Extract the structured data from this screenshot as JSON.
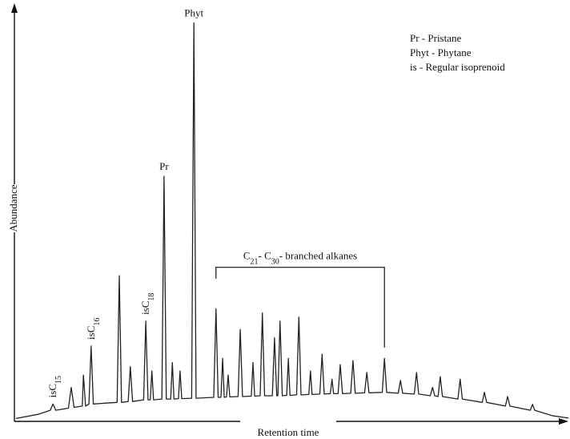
{
  "chart_data": {
    "type": "line",
    "ylabel": "Abundance",
    "xlabel": "Retention time",
    "xlim": [
      0,
      100
    ],
    "ylim": [
      0,
      100
    ],
    "color": "#222222",
    "legend_lines": [
      "Pr - Pristane",
      "Phyt - Phytane",
      "is - Regular isoprenoid"
    ],
    "peak_labels": [
      {
        "parts": [
          "Phyt"
        ],
        "x": 32.2,
        "value": 96
      },
      {
        "parts": [
          "Pr"
        ],
        "x": 26.8,
        "value": 59
      },
      {
        "parts": [
          "isC",
          "18"
        ],
        "x": 23.5,
        "value": 24,
        "rotated": true
      },
      {
        "parts": [
          "isC",
          "16"
        ],
        "x": 13.6,
        "value": 18,
        "rotated": true
      },
      {
        "parts": [
          "isC",
          "15"
        ],
        "x": 6.7,
        "value": 4,
        "rotated": true
      }
    ],
    "bracket": {
      "parts": [
        "C",
        "21",
        "- C",
        "30",
        "- branched alkanes"
      ],
      "x": [
        36.2,
        66.7
      ],
      "value": 37
    },
    "x": [
      0,
      4,
      6.2,
      6.7,
      7.2,
      9.5,
      10,
      10.5,
      12,
      12.2,
      12.6,
      13.2,
      13.6,
      14,
      16,
      18.3,
      18.7,
      19.1,
      20.3,
      20.7,
      21.1,
      23.1,
      23.5,
      23.9,
      24.3,
      24.6,
      24.9,
      26.4,
      26.8,
      27.2,
      28,
      28.3,
      28.6,
      29.4,
      29.7,
      30,
      31.8,
      32.2,
      32.6,
      35.8,
      36.2,
      36.6,
      37.1,
      37.4,
      37.7,
      38.1,
      38.4,
      38.7,
      40.2,
      40.6,
      41,
      42.6,
      42.9,
      43.2,
      44.2,
      44.6,
      45,
      46.4,
      46.8,
      47.2,
      47.4,
      47.8,
      48.2,
      49,
      49.3,
      49.6,
      50.8,
      51.2,
      51.6,
      53,
      53.3,
      53.6,
      55,
      55.4,
      55.8,
      56.9,
      57.2,
      57.5,
      58.3,
      58.7,
      59.1,
      60.6,
      61,
      61.4,
      63.1,
      63.5,
      63.9,
      66.3,
      66.7,
      67.1,
      69.2,
      69.6,
      70,
      72.1,
      72.5,
      72.9,
      75,
      75.4,
      75.8,
      76.4,
      76.8,
      77.2,
      80,
      80.4,
      80.8,
      84.4,
      84.8,
      85.2,
      88.6,
      89,
      89.4,
      93.1,
      93.5,
      93.9,
      97,
      100
    ],
    "values": [
      0.5,
      1.5,
      2.5,
      4,
      2.5,
      3,
      8,
      3.2,
      3.5,
      11,
      3.5,
      4,
      18,
      4,
      4.2,
      4.4,
      35,
      4.4,
      4.6,
      13,
      4.6,
      5,
      24,
      5,
      5,
      12,
      5,
      5.2,
      59,
      5.2,
      5.2,
      14,
      5.2,
      5.3,
      12,
      5.3,
      5.4,
      96,
      5.4,
      5.6,
      27,
      5.6,
      5.6,
      15,
      5.6,
      5.7,
      11,
      5.7,
      5.8,
      22,
      5.8,
      5.9,
      14,
      5.9,
      6,
      26,
      6,
      6,
      20,
      6,
      6,
      24,
      6,
      6.1,
      15,
      6.1,
      6.2,
      25,
      6.2,
      6.3,
      12,
      6.3,
      6.4,
      16,
      6.4,
      6.5,
      10,
      6.5,
      6.5,
      13.5,
      6.5,
      6.6,
      14.5,
      6.6,
      6.7,
      11.6,
      6.7,
      6.8,
      15,
      6.8,
      6.6,
      9.7,
      6.6,
      6.4,
      11.6,
      6.4,
      6,
      8,
      6,
      5.8,
      10.6,
      5.8,
      5.2,
      10,
      5.2,
      4.4,
      6.8,
      4.4,
      3.5,
      5.8,
      3.5,
      2.5,
      3.9,
      2.5,
      1.2,
      0.6
    ]
  }
}
